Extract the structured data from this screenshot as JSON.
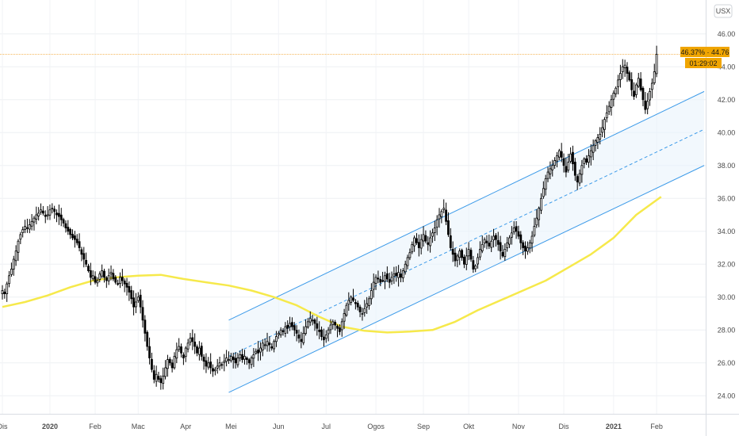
{
  "currency_badge": "USX",
  "price_tag": {
    "label": "46.37% · 44.76",
    "countdown": "01:29:02",
    "color": "#f0a500"
  },
  "chart_data": {
    "type": "candlestick",
    "title": "",
    "xlabel": "",
    "ylabel": "",
    "ylim": [
      23.0,
      47.0
    ],
    "yticks": [
      24,
      26,
      28,
      30,
      32,
      34,
      36,
      38,
      40,
      42,
      44,
      46
    ],
    "xticks": [
      {
        "label": "Dis",
        "t": 0,
        "bold": false
      },
      {
        "label": "2020",
        "t": 21,
        "bold": true
      },
      {
        "label": "Feb",
        "t": 41,
        "bold": false
      },
      {
        "label": "Mac",
        "t": 60,
        "bold": false
      },
      {
        "label": "Apr",
        "t": 81,
        "bold": false
      },
      {
        "label": "Mei",
        "t": 101,
        "bold": false
      },
      {
        "label": "Jun",
        "t": 122,
        "bold": false
      },
      {
        "label": "Jul",
        "t": 143,
        "bold": false
      },
      {
        "label": "Ogos",
        "t": 165,
        "bold": false
      },
      {
        "label": "Sep",
        "t": 186,
        "bold": false
      },
      {
        "label": "Okt",
        "t": 206,
        "bold": false
      },
      {
        "label": "Nov",
        "t": 228,
        "bold": false
      },
      {
        "label": "Dis",
        "t": 248,
        "bold": false
      },
      {
        "label": "2021",
        "t": 270,
        "bold": true
      },
      {
        "label": "Feb",
        "t": 289,
        "bold": false
      }
    ],
    "grid": true,
    "price_line": 44.76,
    "close_series": [
      30.4,
      30.2,
      30.8,
      31.3,
      31.7,
      32.3,
      32.8,
      33.4,
      33.8,
      34.1,
      34.3,
      34.2,
      34.4,
      34.6,
      34.8,
      35.0,
      35.1,
      35.3,
      35.1,
      34.9,
      35.0,
      35.3,
      35.4,
      35.2,
      35.0,
      34.9,
      34.7,
      34.5,
      34.2,
      34.0,
      33.8,
      33.6,
      33.5,
      33.3,
      33.0,
      32.6,
      32.3,
      32.0,
      31.6,
      31.2,
      31.3,
      30.9,
      31.0,
      31.4,
      31.6,
      31.2,
      31.0,
      31.3,
      31.5,
      31.1,
      30.9,
      30.8,
      31.2,
      31.0,
      30.8,
      30.6,
      30.3,
      29.9,
      29.4,
      29.7,
      30.0,
      29.4,
      28.6,
      27.8,
      27.0,
      26.3,
      25.6,
      25.0,
      25.3,
      25.0,
      24.8,
      25.2,
      25.7,
      26.2,
      26.0,
      25.7,
      26.4,
      26.8,
      27.0,
      26.6,
      26.3,
      26.9,
      27.2,
      27.5,
      27.3,
      27.0,
      26.6,
      26.9,
      26.4,
      26.1,
      25.8,
      26.0,
      25.7,
      25.5,
      25.6,
      25.8,
      26.0,
      25.9,
      26.1,
      26.3,
      26.2,
      26.4,
      26.2,
      26.0,
      26.3,
      26.5,
      26.2,
      26.4,
      26.2,
      26.0,
      26.3,
      26.5,
      26.7,
      26.6,
      26.9,
      27.2,
      27.1,
      27.3,
      27.1,
      26.9,
      27.3,
      27.6,
      27.8,
      28.0,
      27.9,
      28.2,
      28.1,
      28.4,
      28.2,
      28.0,
      27.8,
      27.5,
      27.3,
      27.8,
      28.2,
      28.5,
      28.7,
      28.6,
      28.4,
      28.1,
      27.9,
      27.6,
      27.4,
      27.7,
      28.0,
      28.3,
      28.5,
      28.3,
      28.1,
      27.9,
      28.5,
      29.0,
      29.5,
      29.8,
      30.0,
      29.8,
      29.6,
      29.4,
      29.1,
      29.0,
      29.3,
      29.6,
      29.9,
      30.4,
      30.9,
      31.2,
      31.1,
      30.9,
      31.0,
      31.3,
      31.1,
      30.9,
      31.2,
      31.4,
      31.3,
      31.5,
      31.2,
      31.6,
      32.0,
      32.4,
      32.7,
      33.2,
      33.6,
      33.3,
      33.0,
      33.5,
      33.8,
      33.4,
      33.2,
      33.6,
      33.9,
      34.2,
      34.7,
      35.0,
      35.2,
      35.4,
      34.6,
      33.8,
      33.0,
      32.6,
      32.2,
      32.5,
      32.8,
      32.4,
      32.0,
      32.5,
      32.9,
      32.3,
      31.7,
      31.9,
      32.4,
      32.9,
      33.2,
      33.5,
      33.3,
      33.1,
      33.4,
      33.7,
      33.5,
      33.2,
      32.8,
      32.5,
      32.9,
      33.3,
      33.6,
      33.9,
      34.2,
      34.0,
      33.7,
      33.3,
      33.0,
      32.8,
      33.0,
      33.3,
      33.7,
      34.3,
      34.8,
      35.4,
      36.0,
      36.6,
      37.2,
      37.6,
      37.8,
      38.0,
      38.3,
      38.6,
      38.9,
      38.5,
      38.0,
      37.6,
      38.2,
      38.7,
      38.1,
      37.4,
      37.0,
      37.5,
      38.0,
      38.4,
      38.2,
      38.6,
      38.9,
      39.2,
      39.5,
      39.7,
      39.9,
      40.3,
      40.8,
      41.2,
      41.6,
      42.0,
      42.4,
      42.7,
      43.2,
      43.6,
      44.0,
      44.1,
      43.6,
      43.2,
      42.6,
      42.2,
      42.9,
      43.3,
      42.6,
      42.0,
      41.4,
      41.9,
      42.5,
      43.0,
      43.7,
      44.76
    ],
    "series": [
      {
        "type": "sma",
        "color": "#f6e94b",
        "points": [
          [
            0,
            29.4
          ],
          [
            10,
            29.7
          ],
          [
            20,
            30.1
          ],
          [
            30,
            30.6
          ],
          [
            40,
            31.0
          ],
          [
            50,
            31.2
          ],
          [
            60,
            31.3
          ],
          [
            70,
            31.35
          ],
          [
            80,
            31.1
          ],
          [
            90,
            30.9
          ],
          [
            100,
            30.7
          ],
          [
            110,
            30.4
          ],
          [
            120,
            30.0
          ],
          [
            130,
            29.5
          ],
          [
            140,
            28.8
          ],
          [
            150,
            28.2
          ],
          [
            160,
            27.95
          ],
          [
            170,
            27.85
          ],
          [
            180,
            27.9
          ],
          [
            190,
            28.0
          ],
          [
            200,
            28.5
          ],
          [
            210,
            29.2
          ],
          [
            220,
            29.8
          ],
          [
            230,
            30.4
          ],
          [
            240,
            31.0
          ],
          [
            250,
            31.8
          ],
          [
            260,
            32.6
          ],
          [
            270,
            33.6
          ],
          [
            280,
            35.0
          ],
          [
            291,
            36.1
          ]
        ]
      },
      {
        "type": "channel-upper",
        "color": "#3d9be9",
        "points": [
          [
            100,
            28.6
          ],
          [
            310,
            42.5
          ]
        ]
      },
      {
        "type": "channel-middle",
        "color": "#3d9be9",
        "points": [
          [
            100,
            26.4
          ],
          [
            310,
            40.2
          ]
        ]
      },
      {
        "type": "channel-lower",
        "color": "#3d9be9",
        "points": [
          [
            100,
            24.2
          ],
          [
            310,
            38.0
          ]
        ]
      }
    ]
  }
}
